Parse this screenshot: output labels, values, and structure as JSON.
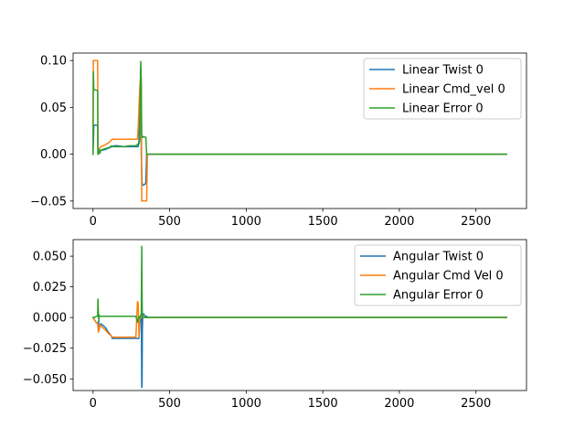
{
  "chart_data": [
    {
      "type": "line",
      "title": "",
      "xlabel": "",
      "ylabel": "",
      "xlim": [
        -130,
        2830
      ],
      "ylim": [
        -0.058,
        0.108
      ],
      "xticks": [
        0,
        500,
        1000,
        1500,
        2000,
        2500
      ],
      "xtick_labels": [
        "0",
        "500",
        "1000",
        "1500",
        "2000",
        "2500"
      ],
      "yticks": [
        -0.05,
        0,
        0.05,
        0.1
      ],
      "ytick_labels": [
        "−0.05",
        "0.00",
        "0.05",
        "0.10"
      ],
      "grid": false,
      "legend_position": "upper right",
      "series": [
        {
          "name": "Linear Twist 0",
          "color": "#1f77b4",
          "x": [
            0,
            5,
            8,
            30,
            32,
            35,
            40,
            50,
            80,
            110,
            120,
            140,
            160,
            200,
            240,
            280,
            295,
            300,
            305,
            310,
            312,
            315,
            320,
            322,
            325,
            330,
            340,
            345,
            350,
            360,
            2700
          ],
          "y": [
            0.0,
            0.03,
            0.031,
            0.031,
            0.0,
            0.0,
            0.002,
            0.004,
            0.005,
            0.007,
            0.008,
            0.009,
            0.009,
            0.008,
            0.008,
            0.008,
            0.008,
            0.015,
            0.05,
            0.07,
            0.075,
            0.0,
            -0.03,
            -0.032,
            -0.033,
            -0.033,
            -0.032,
            -0.03,
            0.0,
            0.0,
            0.0
          ]
        },
        {
          "name": "Linear Cmd_vel 0",
          "color": "#ff7f0e",
          "x": [
            0,
            2,
            30,
            32,
            40,
            50,
            80,
            100,
            120,
            125,
            130,
            140,
            200,
            240,
            280,
            290,
            295,
            300,
            305,
            310,
            315,
            318,
            320,
            325,
            330,
            340,
            350,
            355,
            360,
            2700
          ],
          "y": [
            0.0,
            0.1,
            0.1,
            0.0,
            0.005,
            0.008,
            0.01,
            0.012,
            0.015,
            0.016,
            0.016,
            0.016,
            0.016,
            0.016,
            0.016,
            0.016,
            0.03,
            0.05,
            0.07,
            0.081,
            0.082,
            -0.05,
            -0.05,
            -0.05,
            -0.05,
            -0.05,
            -0.05,
            0.0,
            0.0,
            0.0
          ]
        },
        {
          "name": "Linear Error 0",
          "color": "#2ca02c",
          "x": [
            0,
            2,
            5,
            30,
            32,
            35,
            40,
            45,
            50,
            60,
            80,
            100,
            115,
            120,
            125,
            130,
            150,
            200,
            240,
            280,
            295,
            300,
            305,
            310,
            312,
            315,
            318,
            320,
            322,
            325,
            330,
            340,
            345,
            350,
            360,
            2700
          ],
          "y": [
            0.0,
            0.088,
            0.069,
            0.068,
            0.0,
            0.005,
            0.005,
            0.001,
            0.004,
            0.005,
            0.006,
            0.007,
            0.008,
            0.009,
            0.008,
            0.008,
            0.008,
            0.008,
            0.009,
            0.009,
            0.011,
            0.011,
            0.015,
            0.09,
            0.099,
            0.07,
            0.02,
            0.018,
            0.018,
            0.018,
            0.019,
            0.018,
            0.018,
            0.0,
            0.0,
            0.0
          ]
        }
      ]
    },
    {
      "type": "line",
      "title": "",
      "xlabel": "",
      "ylabel": "",
      "xlim": [
        -130,
        2830
      ],
      "ylim": [
        -0.0595,
        0.0635
      ],
      "xticks": [
        0,
        500,
        1000,
        1500,
        2000,
        2500
      ],
      "xtick_labels": [
        "0",
        "500",
        "1000",
        "1500",
        "2000",
        "2500"
      ],
      "yticks": [
        -0.05,
        -0.025,
        0,
        0.025,
        0.05
      ],
      "ytick_labels": [
        "−0.050",
        "−0.025",
        "0.000",
        "0.025",
        "0.050"
      ],
      "grid": false,
      "legend_position": "upper right",
      "series": [
        {
          "name": "Angular Twist 0",
          "color": "#1f77b4",
          "x": [
            0,
            10,
            20,
            30,
            35,
            40,
            45,
            50,
            60,
            80,
            100,
            120,
            125,
            150,
            200,
            250,
            280,
            300,
            305,
            310,
            315,
            318,
            320,
            322,
            325,
            330,
            340,
            350,
            360,
            2700
          ],
          "y": [
            0.0,
            -0.002,
            -0.004,
            -0.005,
            -0.003,
            -0.01,
            -0.006,
            -0.005,
            -0.006,
            -0.008,
            -0.012,
            -0.015,
            -0.017,
            -0.017,
            -0.017,
            -0.017,
            -0.017,
            -0.017,
            -0.005,
            0.0,
            0.003,
            -0.057,
            -0.056,
            -0.01,
            0.002,
            0.003,
            0.001,
            0.001,
            0.0,
            0.0
          ]
        },
        {
          "name": "Angular Cmd Vel 0",
          "color": "#ff7f0e",
          "x": [
            0,
            10,
            20,
            30,
            35,
            38,
            40,
            45,
            50,
            60,
            80,
            100,
            120,
            125,
            150,
            200,
            250,
            280,
            290,
            295,
            300,
            305,
            310,
            320,
            340,
            2700
          ],
          "y": [
            0.0,
            -0.002,
            -0.004,
            -0.005,
            -0.012,
            -0.01,
            -0.008,
            -0.006,
            -0.006,
            -0.008,
            -0.01,
            -0.013,
            -0.015,
            -0.016,
            -0.016,
            -0.016,
            -0.016,
            -0.016,
            0.013,
            0.012,
            -0.016,
            0.0,
            0.0,
            0.0,
            0.0,
            0.0
          ]
        },
        {
          "name": "Angular Error 0",
          "color": "#2ca02c",
          "x": [
            0,
            10,
            20,
            30,
            32,
            35,
            38,
            40,
            45,
            50,
            60,
            80,
            100,
            120,
            150,
            200,
            250,
            280,
            290,
            300,
            305,
            310,
            315,
            318,
            320,
            322,
            325,
            330,
            340,
            2700
          ],
          "y": [
            0.0,
            0.0,
            0.001,
            0.001,
            0.015,
            0.004,
            -0.003,
            0.002,
            0.001,
            0.001,
            0.001,
            0.001,
            0.001,
            0.001,
            0.001,
            0.001,
            0.001,
            0.001,
            -0.004,
            0.001,
            0.0,
            0.001,
            0.003,
            0.058,
            0.02,
            0.0,
            0.001,
            0.0,
            0.0,
            0.0
          ]
        }
      ]
    }
  ]
}
